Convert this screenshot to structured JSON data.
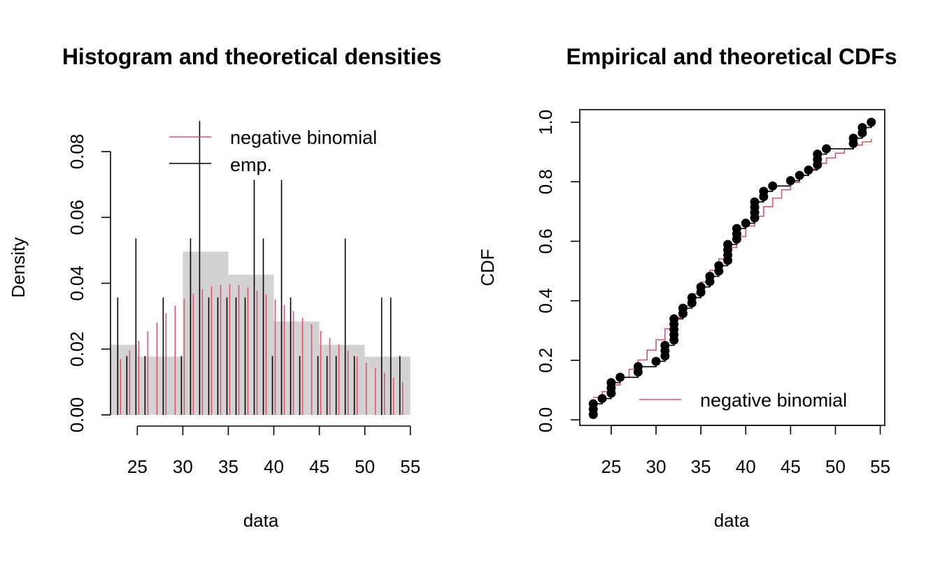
{
  "colors": {
    "theoretical": "#DF536B",
    "empirical": "#000000",
    "histogram_fill": "#D3D3D3",
    "background": "#FFFFFF"
  },
  "chart_data": [
    {
      "type": "bar",
      "title": "Histogram and theoretical densities",
      "xlabel": "data",
      "ylabel": "Density",
      "xlim": [
        21.9,
        55.1
      ],
      "ylim": [
        0,
        0.08
      ],
      "x_ticks": [
        "25",
        "30",
        "35",
        "40",
        "45",
        "50",
        "55"
      ],
      "y_ticks": [
        "0.00",
        "0.02",
        "0.04",
        "0.06",
        "0.08"
      ],
      "histogram": {
        "breaks": [
          22,
          25,
          30,
          35,
          40,
          45,
          50,
          55
        ],
        "density": [
          0.0213,
          0.0177,
          0.0496,
          0.0426,
          0.0284,
          0.0213,
          0.0177
        ]
      },
      "legend": {
        "position": "top",
        "entries": [
          "negative binomial",
          "emp."
        ]
      },
      "series": [
        {
          "name": "negative binomial",
          "kind": "density-spikes",
          "x": [
            23,
            24,
            25,
            26,
            27,
            28,
            29,
            30,
            31,
            32,
            33,
            34,
            35,
            36,
            37,
            38,
            39,
            40,
            41,
            42,
            43,
            44,
            45,
            46,
            47,
            48,
            49,
            50,
            51,
            52,
            53,
            54
          ],
          "values": [
            0.017,
            0.0196,
            0.0225,
            0.0254,
            0.0281,
            0.0309,
            0.0332,
            0.0352,
            0.0369,
            0.0382,
            0.0391,
            0.0396,
            0.0398,
            0.0395,
            0.0388,
            0.0378,
            0.0366,
            0.0351,
            0.0334,
            0.0315,
            0.0295,
            0.0275,
            0.0255,
            0.0234,
            0.0214,
            0.0195,
            0.0177,
            0.0159,
            0.0143,
            0.0127,
            0.0113,
            0.01
          ]
        },
        {
          "name": "emp.",
          "kind": "density-spikes",
          "x": [
            23,
            24,
            25,
            26,
            28,
            30,
            31,
            32,
            33,
            34,
            35,
            36,
            37,
            38,
            39,
            40,
            41,
            42,
            43,
            45,
            46,
            47,
            48,
            49,
            52,
            53,
            54
          ],
          "values": [
            0.0357,
            0.0179,
            0.0536,
            0.0179,
            0.0357,
            0.0179,
            0.0536,
            0.0893,
            0.0357,
            0.0357,
            0.0357,
            0.0357,
            0.0357,
            0.0714,
            0.0536,
            0.0179,
            0.0714,
            0.0357,
            0.0179,
            0.0179,
            0.0179,
            0.0179,
            0.0536,
            0.0179,
            0.0357,
            0.0357,
            0.0179
          ]
        }
      ]
    },
    {
      "type": "line",
      "title": "Empirical and theoretical CDFs",
      "xlabel": "data",
      "ylabel": "CDF",
      "xlim": [
        21.5,
        55.5
      ],
      "ylim": [
        -0.02,
        1.02
      ],
      "x_ticks": [
        "25",
        "30",
        "35",
        "40",
        "45",
        "50",
        "55"
      ],
      "y_ticks": [
        "0.0",
        "0.2",
        "0.4",
        "0.6",
        "0.8",
        "1.0"
      ],
      "legend": {
        "position": "bottom-right",
        "entries": [
          "negative binomial"
        ]
      },
      "series": [
        {
          "name": "negative binomial",
          "kind": "theoretical-step",
          "x": [
            23,
            24,
            25,
            26,
            27,
            28,
            29,
            30,
            31,
            32,
            33,
            34,
            35,
            36,
            37,
            38,
            39,
            40,
            41,
            42,
            43,
            44,
            45,
            46,
            47,
            48,
            49,
            50,
            51,
            52,
            53,
            54
          ],
          "values": [
            0.075,
            0.095,
            0.117,
            0.142,
            0.17,
            0.201,
            0.234,
            0.269,
            0.306,
            0.344,
            0.383,
            0.423,
            0.463,
            0.502,
            0.541,
            0.579,
            0.616,
            0.651,
            0.684,
            0.716,
            0.745,
            0.773,
            0.798,
            0.821,
            0.843,
            0.862,
            0.88,
            0.896,
            0.91,
            0.923,
            0.934,
            0.944
          ]
        },
        {
          "name": "empirical",
          "kind": "ecdf",
          "sorted_data": [
            23,
            23,
            23,
            24,
            25,
            25,
            25,
            26,
            28,
            28,
            30,
            31,
            31,
            31,
            32,
            32,
            32,
            32,
            32,
            33,
            33,
            34,
            34,
            35,
            35,
            36,
            36,
            37,
            37,
            38,
            38,
            38,
            38,
            39,
            39,
            39,
            40,
            41,
            41,
            41,
            41,
            42,
            42,
            43,
            45,
            46,
            47,
            48,
            48,
            48,
            49,
            52,
            52,
            53,
            53,
            54
          ]
        }
      ]
    }
  ]
}
